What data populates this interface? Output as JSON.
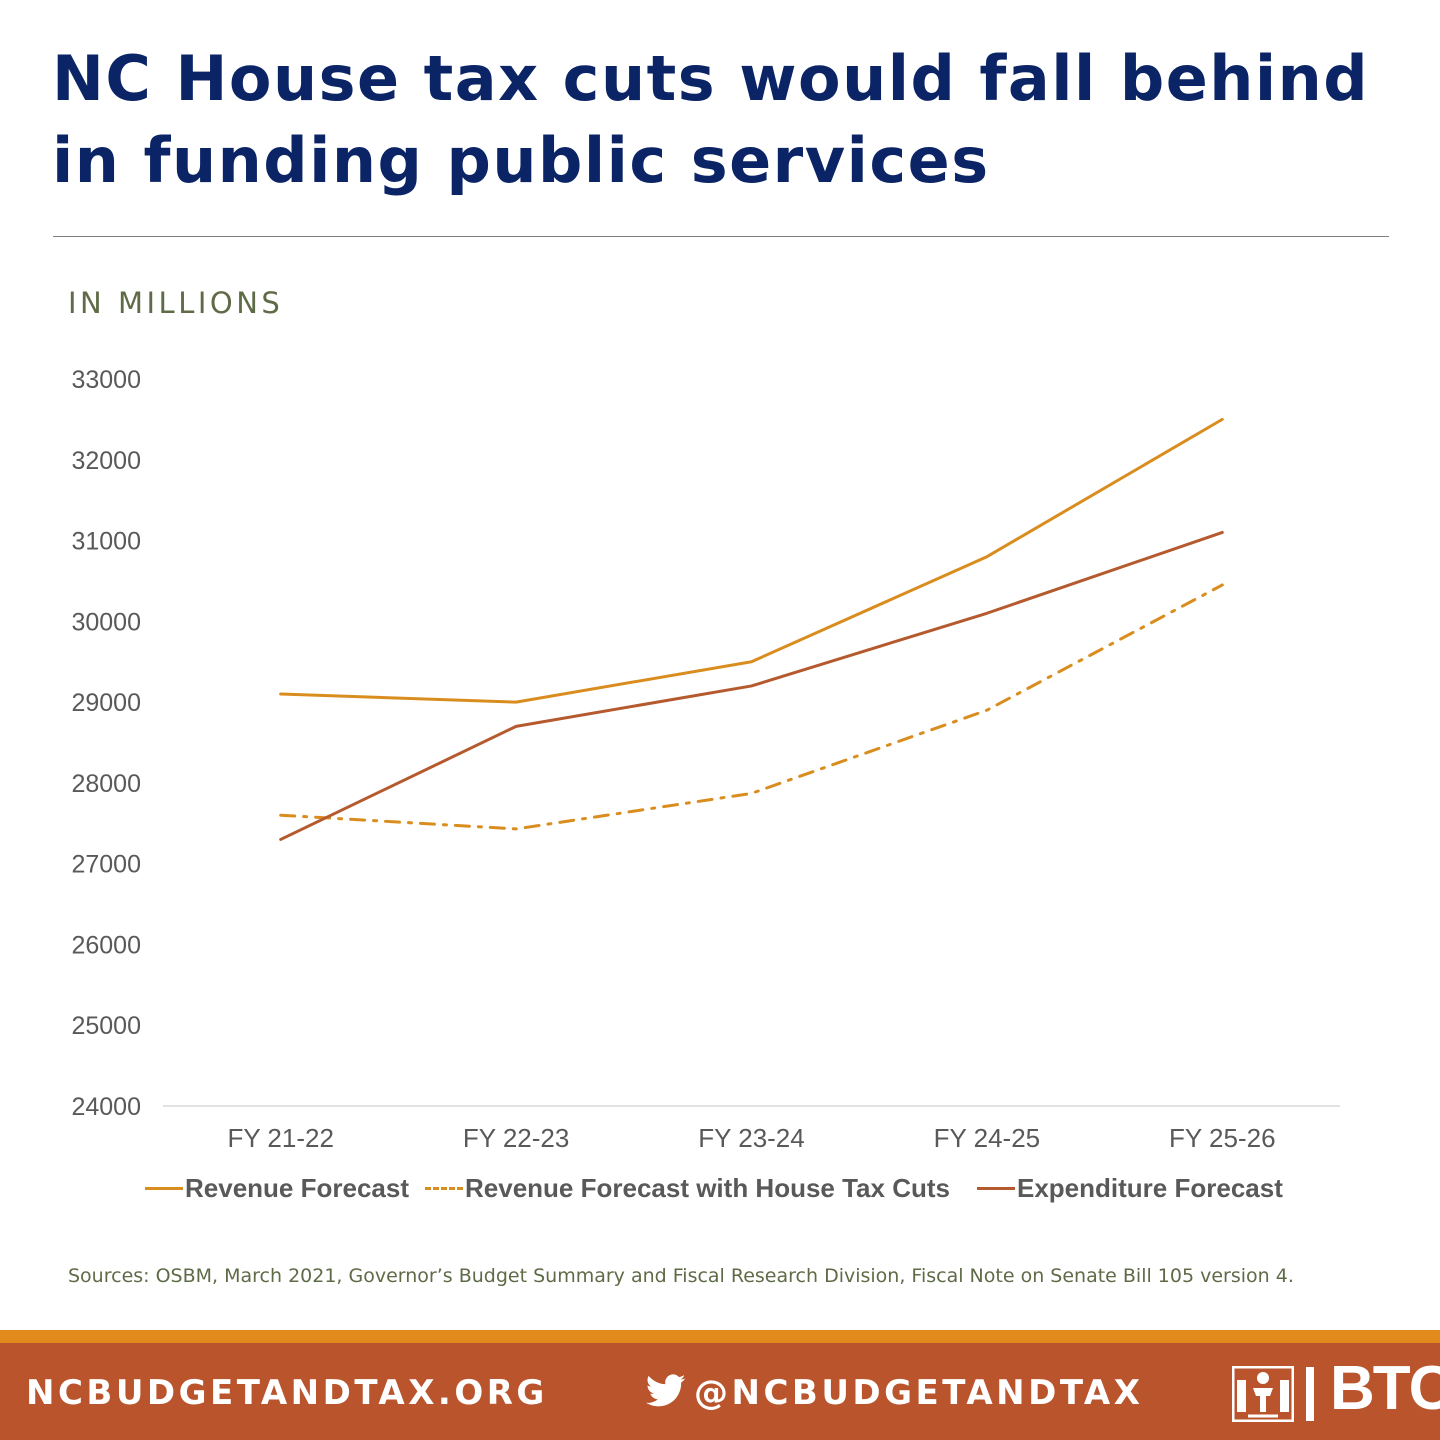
{
  "title": "NC House tax cuts would fall behind in funding public services",
  "unit_label": "IN MILLIONS",
  "sources": "Sources: OSBM, March 2021, Governor’s Budget Summary and Fiscal Research Division, Fiscal Note on Senate Bill 105 version 4.",
  "footer": {
    "website": "NCBUDGETANDTAX.ORG",
    "twitter_handle": "@NCBUDGETANDTAX",
    "logo_text": "BTC",
    "stripe_color": "#e28a1c",
    "background_color": "#b9542c"
  },
  "icons": {
    "twitter": "twitter-bird-icon",
    "logo": "btc-logo-icon"
  },
  "chart_data": {
    "type": "line",
    "categories": [
      "FY 21-22",
      "FY 22-23",
      "FY 23-24",
      "FY 24-25",
      "FY 25-26"
    ],
    "ylim": [
      24000,
      33000
    ],
    "y_ticks": [
      33000,
      32000,
      31000,
      30000,
      29000,
      28000,
      27000,
      26000,
      25000,
      24000
    ],
    "grid": false,
    "legend_position": "bottom",
    "series": [
      {
        "name": "Revenue Forecast",
        "values": [
          29100,
          29000,
          29500,
          30800,
          32500
        ],
        "color": "#d98d1e",
        "style": "solid"
      },
      {
        "name": "Revenue Forecast with House Tax Cuts",
        "values": [
          27600,
          27430,
          27870,
          28900,
          30450
        ],
        "color": "#d98d1e",
        "style": "dash-dot"
      },
      {
        "name": "Expenditure Forecast",
        "values": [
          27300,
          28700,
          29200,
          30100,
          31100
        ],
        "color": "#b55a2e",
        "style": "solid"
      }
    ]
  }
}
